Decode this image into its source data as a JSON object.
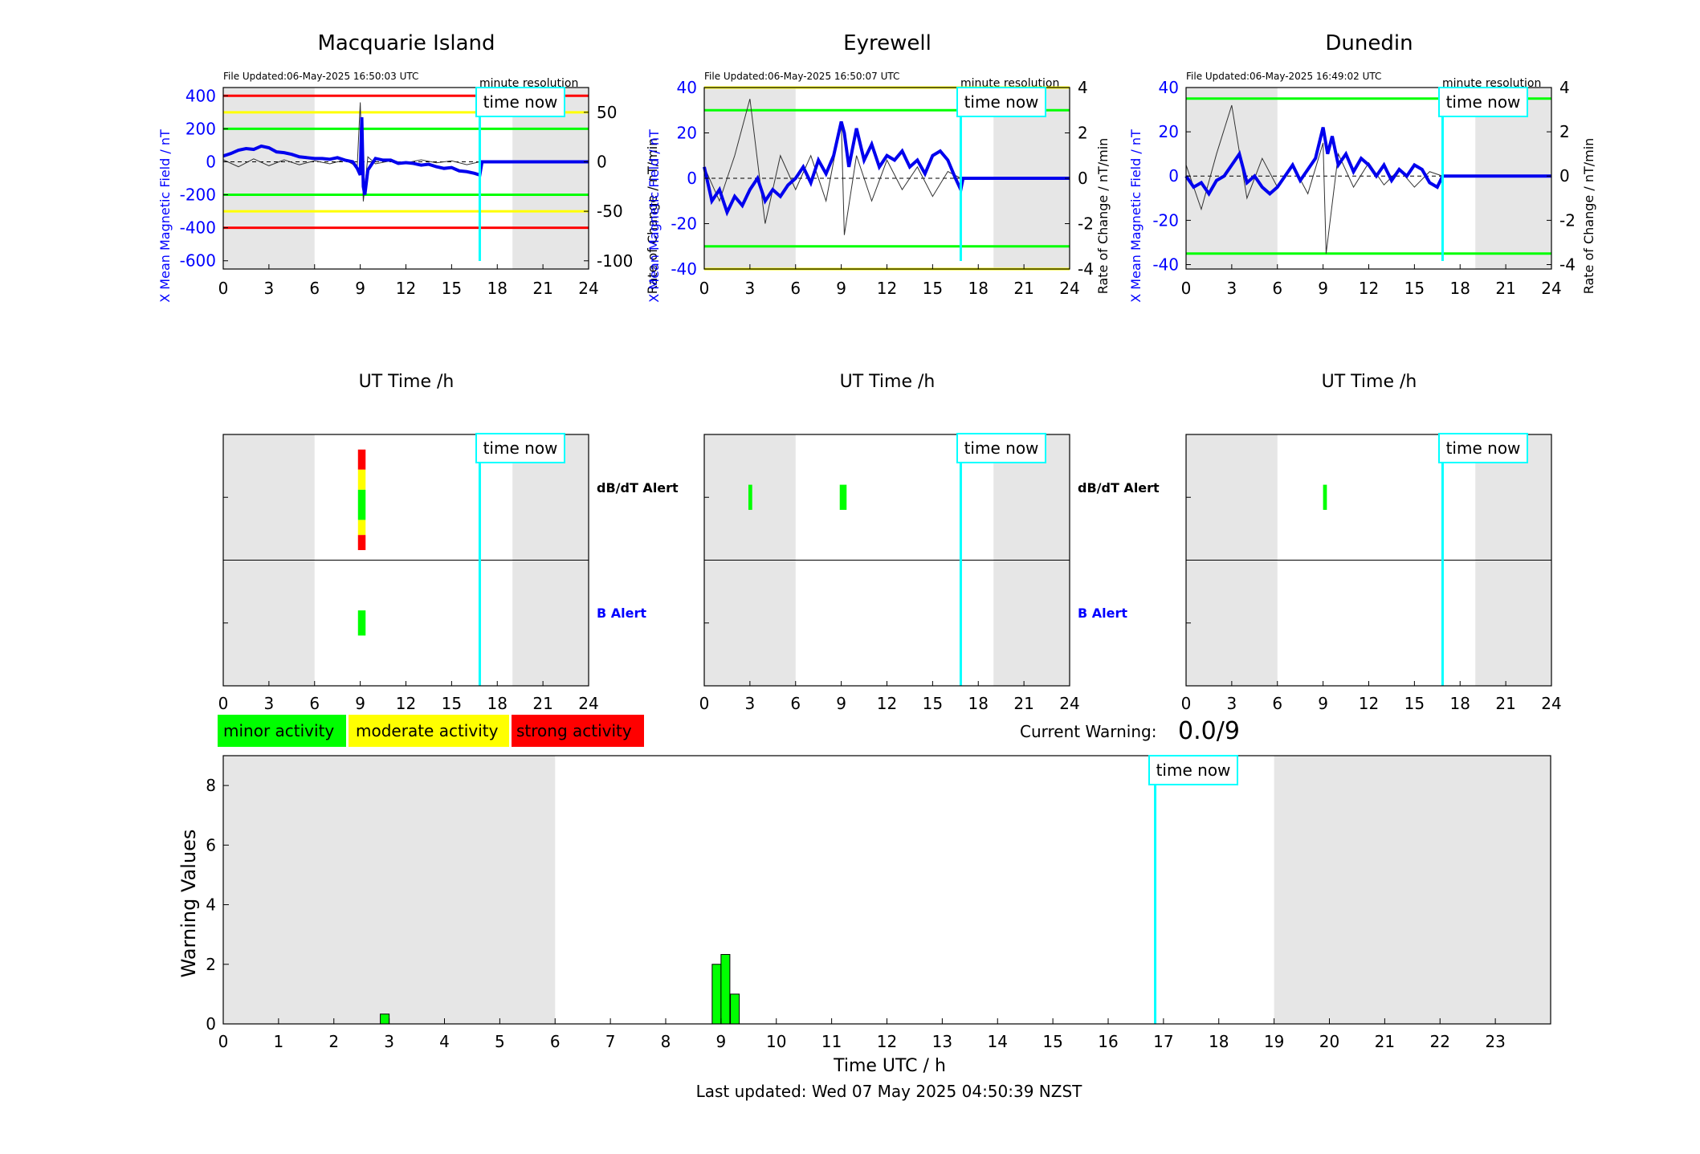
{
  "time_now_label": "time now",
  "minute_resolution_label": "minute resolution",
  "colors": {
    "field_trace": "#0000ee",
    "rate_trace": "#333333",
    "minor": "#00ff00",
    "moderate": "#ffff00",
    "strong": "#ff0000",
    "time_now": "#00ffff",
    "night_shade": "#e6e6e6",
    "b_alert_label": "#0000ff",
    "field_axis": "#0000ff"
  },
  "legend": {
    "minor": "minor activity",
    "moderate": "moderate activity",
    "strong": "strong activity"
  },
  "current_warning": {
    "label": "Current Warning:",
    "value": "0.0/9"
  },
  "last_updated": "Last updated: Wed 07 May 2025 04:50:39 NZST",
  "chart_data": [
    {
      "type": "line",
      "station": "Macquarie Island",
      "title": "Macquarie Island",
      "file_updated": "File Updated:06-May-2025 16:50:03 UTC",
      "xlabel": "UT Time /h",
      "ylabel_left": "X Mean Magnetic Field / nT",
      "ylabel_right": "Rate of Change / nT/min",
      "xlim": [
        0,
        24
      ],
      "xticks": [
        0,
        3,
        6,
        9,
        12,
        15,
        18,
        21,
        24
      ],
      "ylim_left": [
        -650,
        450
      ],
      "yticks_left": [
        -600,
        -400,
        -200,
        0,
        200,
        400
      ],
      "ylim_right": [
        -108.3,
        75
      ],
      "yticks_right": [
        -100,
        -50,
        0,
        50
      ],
      "thresholds": [
        {
          "value": 400,
          "level": "strong"
        },
        {
          "value": 300,
          "level": "moderate"
        },
        {
          "value": 200,
          "level": "minor"
        },
        {
          "value": -200,
          "level": "minor"
        },
        {
          "value": -300,
          "level": "moderate"
        },
        {
          "value": -400,
          "level": "strong"
        }
      ],
      "night_shading": [
        [
          0,
          6
        ],
        [
          19,
          24
        ]
      ],
      "time_now": 16.85,
      "field_series": {
        "name": "X Mean Magnetic Field",
        "x": [
          0,
          0.5,
          1,
          1.5,
          2,
          2.5,
          3,
          3.5,
          4,
          4.5,
          5,
          5.5,
          6,
          6.5,
          7,
          7.5,
          8,
          8.5,
          8.8,
          9,
          9.1,
          9.2,
          9.3,
          9.5,
          10,
          10.5,
          11,
          11.5,
          12,
          12.5,
          13,
          13.5,
          14,
          14.5,
          15,
          15.5,
          16,
          16.5,
          16.85,
          17,
          18,
          20,
          22,
          24
        ],
        "y": [
          35,
          50,
          70,
          80,
          75,
          95,
          85,
          60,
          55,
          45,
          30,
          25,
          20,
          20,
          15,
          25,
          10,
          0,
          -40,
          -80,
          270,
          -150,
          -200,
          -50,
          20,
          10,
          10,
          -10,
          -5,
          -10,
          -20,
          -15,
          -30,
          -40,
          -35,
          -55,
          -60,
          -70,
          -80,
          0,
          0,
          0,
          0,
          0
        ]
      },
      "rate_series": {
        "name": "Rate of Change",
        "x": [
          0,
          1,
          2,
          3,
          4,
          5,
          6,
          7,
          8,
          8.8,
          9,
          9.2,
          9.5,
          10,
          11,
          12,
          13,
          14,
          15,
          16,
          16.85
        ],
        "y": [
          2,
          -5,
          3,
          -4,
          2,
          -3,
          1,
          -2,
          2,
          -5,
          60,
          -40,
          5,
          -2,
          1,
          -1,
          2,
          -1,
          1,
          -3,
          0
        ]
      }
    },
    {
      "type": "line",
      "station": "Eyrewell",
      "title": "Eyrewell",
      "file_updated": "File Updated:06-May-2025 16:50:07 UTC",
      "xlabel": "UT Time /h",
      "ylabel_left": "X Mean Magnetic Field / nT",
      "ylabel_right": "Rate of Change / nT/min",
      "xlim": [
        0,
        24
      ],
      "xticks": [
        0,
        3,
        6,
        9,
        12,
        15,
        18,
        21,
        24
      ],
      "ylim_left": [
        -40,
        40
      ],
      "yticks_left": [
        -40,
        -20,
        0,
        20,
        40
      ],
      "ylim_right": [
        -4,
        4
      ],
      "yticks_right": [
        -4,
        -2,
        0,
        2,
        4
      ],
      "thresholds": [
        {
          "value": 40,
          "level": "moderate"
        },
        {
          "value": 30,
          "level": "minor"
        },
        {
          "value": -30,
          "level": "minor"
        },
        {
          "value": -40,
          "level": "moderate"
        }
      ],
      "night_shading": [
        [
          0,
          6
        ],
        [
          19,
          24
        ]
      ],
      "time_now": 16.85,
      "field_series": {
        "name": "X Mean Magnetic Field",
        "x": [
          0,
          0.5,
          1,
          1.5,
          2,
          2.5,
          3,
          3.5,
          4,
          4.5,
          5,
          5.5,
          6,
          6.5,
          7,
          7.5,
          8,
          8.5,
          9,
          9.2,
          9.5,
          10,
          10.5,
          11,
          11.5,
          12,
          12.5,
          13,
          13.5,
          14,
          14.5,
          15,
          15.5,
          16,
          16.5,
          16.85,
          17,
          18,
          20,
          22,
          24
        ],
        "y": [
          5,
          -10,
          -5,
          -15,
          -8,
          -12,
          -5,
          0,
          -10,
          -5,
          -8,
          -3,
          0,
          5,
          -2,
          8,
          2,
          10,
          25,
          20,
          5,
          22,
          8,
          15,
          5,
          10,
          8,
          12,
          5,
          8,
          2,
          10,
          12,
          8,
          0,
          -5,
          0,
          0,
          0,
          0,
          0
        ]
      },
      "rate_series": {
        "name": "Rate of Change",
        "x": [
          0,
          1,
          2,
          3,
          4,
          5,
          6,
          7,
          8,
          9,
          9.2,
          10,
          11,
          12,
          13,
          14,
          15,
          16,
          16.85
        ],
        "y": [
          0.5,
          -1,
          1,
          3.5,
          -2,
          1,
          -0.5,
          1,
          -1,
          2.5,
          -2.5,
          1,
          -1,
          0.8,
          -0.5,
          0.5,
          -0.8,
          0.3,
          0
        ]
      }
    },
    {
      "type": "line",
      "station": "Dunedin",
      "title": "Dunedin",
      "file_updated": "File Updated:06-May-2025 16:49:02 UTC",
      "xlabel": "UT Time /h",
      "ylabel_left": "X Mean Magnetic Field / nT",
      "ylabel_right": "Rate of Change / nT/min",
      "xlim": [
        0,
        24
      ],
      "xticks": [
        0,
        3,
        6,
        9,
        12,
        15,
        18,
        21,
        24
      ],
      "ylim_left": [
        -42,
        40
      ],
      "yticks_left": [
        -40,
        -20,
        0,
        20,
        40
      ],
      "ylim_right": [
        -4.2,
        4
      ],
      "yticks_right": [
        -4,
        -2,
        0,
        2,
        4
      ],
      "thresholds": [
        {
          "value": 35,
          "level": "minor"
        },
        {
          "value": -35,
          "level": "minor"
        }
      ],
      "night_shading": [
        [
          0,
          6
        ],
        [
          19,
          24
        ]
      ],
      "time_now": 16.85,
      "field_series": {
        "name": "X Mean Magnetic Field",
        "x": [
          0,
          0.5,
          1,
          1.5,
          2,
          2.5,
          3,
          3.5,
          4,
          4.5,
          5,
          5.5,
          6,
          6.5,
          7,
          7.5,
          8,
          8.5,
          9,
          9.3,
          9.6,
          10,
          10.5,
          11,
          11.5,
          12,
          12.5,
          13,
          13.5,
          14,
          14.5,
          15,
          15.5,
          16,
          16.5,
          16.85,
          17,
          18,
          20,
          22,
          24
        ],
        "y": [
          0,
          -5,
          -3,
          -8,
          -2,
          0,
          5,
          10,
          -3,
          0,
          -5,
          -8,
          -5,
          0,
          5,
          -2,
          3,
          8,
          22,
          10,
          18,
          5,
          10,
          2,
          8,
          5,
          0,
          5,
          -2,
          3,
          0,
          5,
          3,
          -3,
          -5,
          0,
          0,
          0,
          0,
          0,
          0
        ]
      },
      "rate_series": {
        "name": "Rate of Change",
        "x": [
          0,
          1,
          2,
          3,
          4,
          5,
          6,
          7,
          8,
          9,
          9.2,
          10,
          11,
          12,
          13,
          14,
          15,
          16,
          16.85
        ],
        "y": [
          0.5,
          -1.5,
          1,
          3.2,
          -1,
          0.8,
          -0.5,
          0.5,
          -0.8,
          1.5,
          -3.5,
          1,
          -0.5,
          0.6,
          -0.4,
          0.3,
          -0.5,
          0.2,
          0
        ]
      }
    },
    {
      "type": "heatmap",
      "station": "Macquarie Island",
      "xlim": [
        0,
        24
      ],
      "xticks": [
        0,
        3,
        6,
        9,
        12,
        15,
        18,
        21,
        24
      ],
      "rows": [
        "dB/dT Alert",
        "B Alert"
      ],
      "night_shading": [
        [
          0,
          6
        ],
        [
          19,
          24
        ]
      ],
      "time_now": 16.85,
      "events": [
        {
          "row": "dB/dT Alert",
          "start": 8.85,
          "end": 9.35,
          "level": "strong",
          "span": [
            0.72,
            0.88
          ]
        },
        {
          "row": "dB/dT Alert",
          "start": 8.85,
          "end": 9.35,
          "level": "moderate",
          "span": [
            0.56,
            0.72
          ]
        },
        {
          "row": "dB/dT Alert",
          "start": 8.85,
          "end": 9.35,
          "level": "minor",
          "span": [
            0.32,
            0.56
          ]
        },
        {
          "row": "dB/dT Alert",
          "start": 8.85,
          "end": 9.35,
          "level": "moderate",
          "span": [
            0.2,
            0.32
          ]
        },
        {
          "row": "dB/dT Alert",
          "start": 8.85,
          "end": 9.35,
          "level": "strong",
          "span": [
            0.08,
            0.2
          ]
        },
        {
          "row": "B Alert",
          "start": 8.85,
          "end": 9.35,
          "level": "minor",
          "span": [
            0.4,
            0.6
          ]
        }
      ]
    },
    {
      "type": "heatmap",
      "station": "Eyrewell",
      "xlim": [
        0,
        24
      ],
      "xticks": [
        0,
        3,
        6,
        9,
        12,
        15,
        18,
        21,
        24
      ],
      "rows": [
        "dB/dT Alert",
        "B Alert"
      ],
      "night_shading": [
        [
          0,
          6
        ],
        [
          19,
          24
        ]
      ],
      "time_now": 16.85,
      "events": [
        {
          "row": "dB/dT Alert",
          "start": 2.9,
          "end": 3.15,
          "level": "minor",
          "span": [
            0.4,
            0.6
          ]
        },
        {
          "row": "dB/dT Alert",
          "start": 8.9,
          "end": 9.35,
          "level": "minor",
          "span": [
            0.4,
            0.6
          ]
        }
      ]
    },
    {
      "type": "heatmap",
      "station": "Dunedin",
      "xlim": [
        0,
        24
      ],
      "xticks": [
        0,
        3,
        6,
        9,
        12,
        15,
        18,
        21,
        24
      ],
      "rows": [
        "dB/dT Alert",
        "B Alert"
      ],
      "night_shading": [
        [
          0,
          6
        ],
        [
          19,
          24
        ]
      ],
      "time_now": 16.85,
      "events": [
        {
          "row": "dB/dT Alert",
          "start": 9.0,
          "end": 9.25,
          "level": "minor",
          "span": [
            0.4,
            0.6
          ]
        }
      ]
    },
    {
      "type": "bar",
      "xlabel": "Time UTC / h",
      "ylabel": "Warning Values",
      "xlim": [
        0,
        24
      ],
      "xticks": [
        0,
        1,
        2,
        3,
        4,
        5,
        6,
        7,
        8,
        9,
        10,
        11,
        12,
        13,
        14,
        15,
        16,
        17,
        18,
        19,
        20,
        21,
        22,
        23
      ],
      "ylim": [
        0,
        9
      ],
      "yticks": [
        0,
        2,
        4,
        6,
        8
      ],
      "night_shading": [
        [
          0,
          6
        ],
        [
          19,
          24
        ]
      ],
      "time_now": 16.85,
      "bar_width": 0.16,
      "bars": [
        {
          "x": 2.92,
          "value": 0.33,
          "level": "minor"
        },
        {
          "x": 8.92,
          "value": 2.0,
          "level": "minor"
        },
        {
          "x": 9.08,
          "value": 2.33,
          "level": "minor"
        },
        {
          "x": 9.25,
          "value": 1.0,
          "level": "minor"
        }
      ]
    }
  ]
}
